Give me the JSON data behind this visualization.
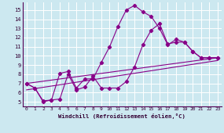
{
  "xlabel": "Windchill (Refroidissement éolien,°C)",
  "bg_color": "#cce8f0",
  "line_color": "#880088",
  "grid_color": "#aaddee",
  "xlim": [
    -0.5,
    23.5
  ],
  "ylim": [
    4.5,
    15.8
  ],
  "xticks": [
    0,
    1,
    2,
    3,
    4,
    5,
    6,
    7,
    8,
    9,
    10,
    11,
    12,
    13,
    14,
    15,
    16,
    17,
    18,
    19,
    20,
    21,
    22,
    23
  ],
  "yticks": [
    5,
    6,
    7,
    8,
    9,
    10,
    11,
    12,
    13,
    14,
    15
  ],
  "line1_x": [
    0,
    1,
    2,
    3,
    4,
    5,
    6,
    7,
    8,
    9,
    10,
    11,
    12,
    13,
    14,
    15,
    16,
    17,
    18,
    19,
    20,
    21,
    22,
    23
  ],
  "line1_y": [
    7.0,
    6.5,
    5.0,
    5.2,
    8.1,
    8.3,
    6.5,
    7.5,
    7.5,
    9.3,
    11.0,
    13.2,
    15.0,
    15.5,
    14.8,
    14.3,
    13.0,
    11.2,
    11.8,
    11.5,
    10.5,
    9.8,
    9.8,
    9.8
  ],
  "line2_x": [
    0,
    1,
    2,
    3,
    4,
    5,
    6,
    7,
    8,
    9,
    10,
    11,
    12,
    13,
    14,
    15,
    16,
    17,
    18,
    19,
    20,
    21,
    22,
    23
  ],
  "line2_y": [
    7.0,
    6.5,
    5.1,
    5.2,
    5.3,
    8.0,
    6.3,
    6.6,
    7.8,
    6.5,
    6.5,
    6.5,
    7.2,
    8.8,
    11.2,
    12.8,
    13.5,
    11.3,
    11.5,
    11.5,
    10.5,
    9.8,
    9.8,
    9.8
  ],
  "line3_x": [
    0,
    23
  ],
  "line3_y": [
    6.3,
    9.5
  ],
  "line4_x": [
    0,
    23
  ],
  "line4_y": [
    7.0,
    9.8
  ]
}
